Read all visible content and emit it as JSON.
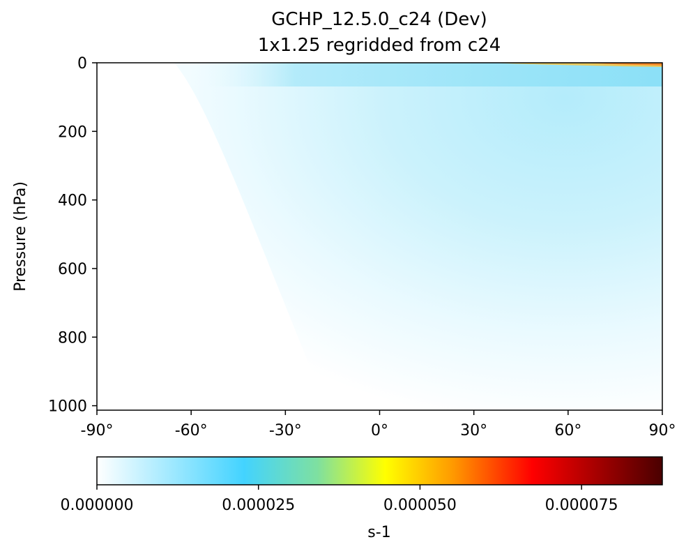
{
  "chart_data": {
    "type": "heatmap",
    "title": "GCHP_12.5.0_c24 (Dev)",
    "subtitle": "1x1.25 regridded from c24",
    "ylabel": "Pressure (hPa)",
    "xlabel": "",
    "x_ticks": [
      -90,
      -60,
      -30,
      0,
      30,
      60,
      90
    ],
    "x_tick_labels": [
      "-90°",
      "-60°",
      "-30°",
      "0°",
      "30°",
      "60°",
      "90°"
    ],
    "xlim": [
      -90,
      90
    ],
    "y_ticks": [
      0,
      200,
      400,
      600,
      800,
      1000
    ],
    "y_tick_labels": [
      "0",
      "200",
      "400",
      "600",
      "800",
      "1000"
    ],
    "ylim": [
      1013,
      0
    ],
    "colorbar": {
      "label": "s-1",
      "range": [
        0,
        8.75e-05
      ],
      "ticks": [
        0,
        2.5e-05,
        5e-05,
        7.5e-05
      ],
      "tick_labels": [
        "0.000000",
        "0.000025",
        "0.000050",
        "0.000075"
      ],
      "colormap_stops": [
        "#ffffff",
        "#43d3ff",
        "#ffff00",
        "#ff0000",
        "#4a0000"
      ]
    },
    "field_description_values": {
      "max_near_top_north": 4e-05,
      "upper_tropo_north": 1.2e-05,
      "surface_south": 0.0
    }
  }
}
